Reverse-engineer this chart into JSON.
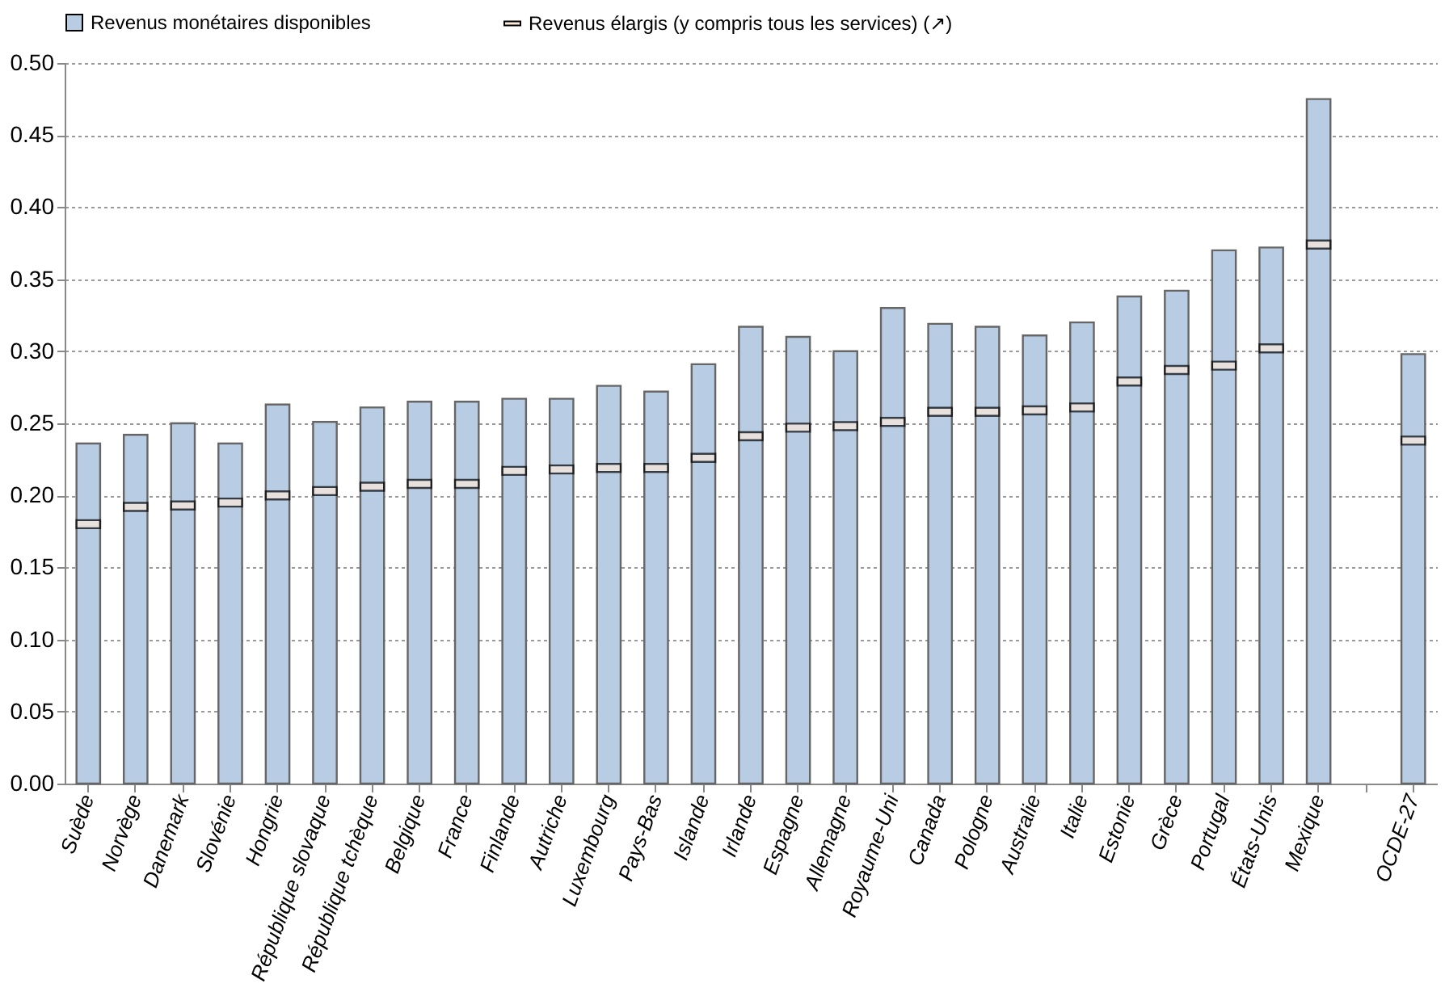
{
  "chart_data": {
    "type": "bar",
    "categories": [
      "Suède",
      "Norvège",
      "Danemark",
      "Slovénie",
      "Hongrie",
      "République slovaque",
      "République tchèque",
      "Belgique",
      "France",
      "Finlande",
      "Autriche",
      "Luxembourg",
      "Pays-Bas",
      "Islande",
      "Irlande",
      "Espagne",
      "Allemagne",
      "Royaume-Uni",
      "Canada",
      "Pologne",
      "Australie",
      "Italie",
      "Estonie",
      "Grèce",
      "Portugal",
      "États-Unis",
      "Mexique",
      null,
      "OCDE-27"
    ],
    "series": [
      {
        "name": "Revenus monétaires disponibles",
        "color": "#b8cce4",
        "values": [
          0.236,
          0.242,
          0.25,
          0.236,
          0.263,
          0.251,
          0.261,
          0.265,
          0.265,
          0.267,
          0.267,
          0.276,
          0.272,
          0.291,
          0.317,
          0.31,
          0.3,
          0.33,
          0.319,
          0.317,
          0.311,
          0.32,
          0.338,
          0.342,
          0.37,
          0.372,
          0.475,
          null,
          0.298
        ]
      },
      {
        "name": "Revenus élargis (y compris tous les services) (↗)",
        "type": "scatter",
        "color": "#fde9d9",
        "values": [
          0.18,
          0.192,
          0.193,
          0.195,
          0.2,
          0.203,
          0.206,
          0.208,
          0.208,
          0.217,
          0.218,
          0.219,
          0.219,
          0.226,
          0.241,
          0.247,
          0.248,
          0.251,
          0.258,
          0.258,
          0.259,
          0.261,
          0.279,
          0.287,
          0.29,
          0.302,
          0.374,
          null,
          0.238
        ]
      }
    ],
    "ylim": [
      0,
      0.5
    ],
    "yticks": [
      {
        "value": 0,
        "label": "0.00"
      },
      {
        "value": 0.05,
        "label": "0.05"
      },
      {
        "value": 0.1,
        "label": "0.10"
      },
      {
        "value": 0.15,
        "label": "0.15"
      },
      {
        "value": 0.2,
        "label": "0.20"
      },
      {
        "value": 0.25,
        "label": "0.25"
      },
      {
        "value": 0.3,
        "label": "0.30"
      },
      {
        "value": 0.35,
        "label": "0.35"
      },
      {
        "value": 0.4,
        "label": "0.40"
      },
      {
        "value": 0.45,
        "label": "0.45"
      },
      {
        "value": 0.5,
        "label": "0.50"
      }
    ],
    "grid": "y",
    "legend": "top"
  }
}
